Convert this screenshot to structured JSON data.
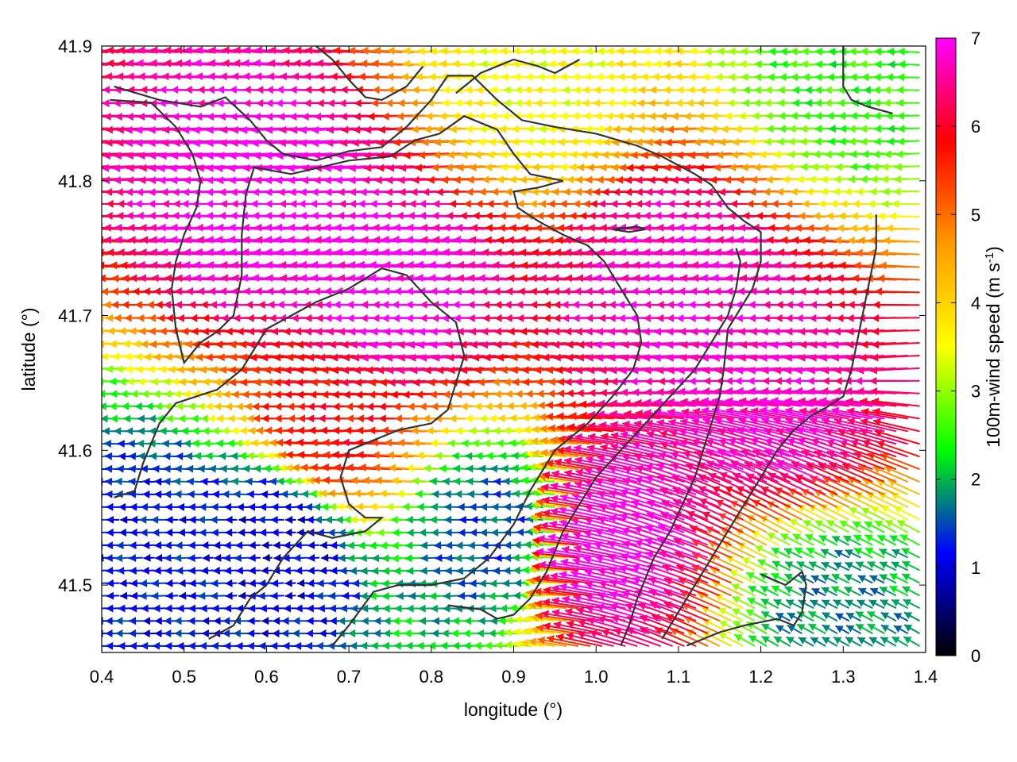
{
  "chart_data": {
    "type": "vector-field",
    "xlabel": "longitude (°)",
    "ylabel": "latitude (°)",
    "xlim": [
      0.4,
      1.4
    ],
    "ylim": [
      41.45,
      41.9
    ],
    "x_ticks": [
      0.4,
      0.5,
      0.6,
      0.7,
      0.8,
      0.9,
      1.0,
      1.1,
      1.2,
      1.3,
      1.4
    ],
    "x_tick_labels": [
      "0.4",
      "0.5",
      "0.6",
      "0.7",
      "0.8",
      "0.9",
      "1.0",
      "1.1",
      "1.2",
      "1.3",
      "1.4"
    ],
    "y_ticks": [
      41.5,
      41.6,
      41.7,
      41.8,
      41.9
    ],
    "y_tick_labels": [
      "41.5",
      "41.6",
      "41.7",
      "41.8",
      "41.9"
    ],
    "colorbar": {
      "label": "100m-wind speed (m s",
      "label_sup": "-1",
      "label_end": ")",
      "range": [
        0,
        7
      ],
      "ticks": [
        0,
        1,
        2,
        3,
        4,
        5,
        6,
        7
      ],
      "tick_labels": [
        "0",
        "1",
        "2",
        "3",
        "4",
        "5",
        "6",
        "7"
      ],
      "palette": [
        "#000000",
        "#0000ff",
        "#00ff00",
        "#ffff00",
        "#ff9900",
        "#ff0000",
        "#ff00ff"
      ]
    },
    "wind_regime_centers": [
      {
        "lon": 0.65,
        "lat": 41.78,
        "speed": 7.0
      },
      {
        "lon": 0.8,
        "lat": 41.72,
        "speed": 7.0
      },
      {
        "lon": 1.15,
        "lat": 41.72,
        "speed": 6.8
      },
      {
        "lon": 1.05,
        "lat": 41.53,
        "speed": 7.0
      },
      {
        "lon": 1.25,
        "lat": 41.62,
        "speed": 6.8
      },
      {
        "lon": 0.47,
        "lat": 41.52,
        "speed": 1.2
      },
      {
        "lon": 0.63,
        "lat": 41.53,
        "speed": 1.0
      },
      {
        "lon": 0.88,
        "lat": 41.54,
        "speed": 1.5
      },
      {
        "lon": 1.3,
        "lat": 41.48,
        "speed": 1.8
      },
      {
        "lon": 1.33,
        "lat": 41.88,
        "speed": 2.5
      },
      {
        "lon": 0.72,
        "lat": 41.62,
        "speed": 5.8
      },
      {
        "lon": 0.95,
        "lat": 41.88,
        "speed": 3.5
      }
    ],
    "boundaries": [
      [
        [
          0.415,
          41.87
        ],
        [
          0.47,
          41.86
        ],
        [
          0.52,
          41.855
        ],
        [
          0.55,
          41.862
        ],
        [
          0.58,
          41.845
        ],
        [
          0.6,
          41.83
        ],
        [
          0.62,
          41.82
        ],
        [
          0.66,
          41.815
        ],
        [
          0.7,
          41.822
        ],
        [
          0.74,
          41.825
        ],
        [
          0.77,
          41.84
        ],
        [
          0.8,
          41.86
        ],
        [
          0.82,
          41.878
        ],
        [
          0.85,
          41.878
        ],
        [
          0.88,
          41.86
        ],
        [
          0.91,
          41.845
        ],
        [
          0.95,
          41.84
        ],
        [
          1.0,
          41.835
        ],
        [
          1.05,
          41.826
        ],
        [
          1.08,
          41.818
        ],
        [
          1.12,
          41.805
        ],
        [
          1.14,
          41.797
        ],
        [
          1.16,
          41.78
        ],
        [
          1.18,
          41.77
        ],
        [
          1.2,
          41.762
        ],
        [
          1.2,
          41.74
        ],
        [
          1.19,
          41.72
        ],
        [
          1.17,
          41.7
        ],
        [
          1.16,
          41.69
        ],
        [
          1.155,
          41.66
        ],
        [
          1.15,
          41.64
        ],
        [
          1.14,
          41.62
        ],
        [
          1.13,
          41.6
        ],
        [
          1.12,
          41.58
        ],
        [
          1.105,
          41.56
        ],
        [
          1.09,
          41.54
        ],
        [
          1.07,
          41.52
        ],
        [
          1.05,
          41.49
        ],
        [
          1.04,
          41.47
        ],
        [
          1.03,
          41.455
        ]
      ],
      [
        [
          0.41,
          41.86
        ],
        [
          0.46,
          41.858
        ],
        [
          0.49,
          41.84
        ],
        [
          0.51,
          41.82
        ],
        [
          0.52,
          41.8
        ],
        [
          0.515,
          41.78
        ],
        [
          0.5,
          41.76
        ],
        [
          0.49,
          41.74
        ],
        [
          0.485,
          41.72
        ],
        [
          0.49,
          41.69
        ],
        [
          0.5,
          41.665
        ],
        [
          0.52,
          41.68
        ],
        [
          0.54,
          41.688
        ],
        [
          0.56,
          41.7
        ],
        [
          0.57,
          41.73
        ],
        [
          0.57,
          41.76
        ],
        [
          0.575,
          41.79
        ],
        [
          0.585,
          41.81
        ],
        [
          0.63,
          41.805
        ],
        [
          0.7,
          41.815
        ],
        [
          0.75,
          41.818
        ],
        [
          0.78,
          41.83
        ],
        [
          0.81,
          41.835
        ],
        [
          0.84,
          41.848
        ],
        [
          0.88,
          41.838
        ],
        [
          0.9,
          41.82
        ],
        [
          0.92,
          41.805
        ],
        [
          0.96,
          41.8
        ],
        [
          0.93,
          41.795
        ],
        [
          0.9,
          41.792
        ],
        [
          0.905,
          41.78
        ],
        [
          0.93,
          41.77
        ],
        [
          0.96,
          41.76
        ],
        [
          0.99,
          41.752
        ],
        [
          1.01,
          41.74
        ],
        [
          1.03,
          41.72
        ],
        [
          1.05,
          41.7
        ],
        [
          1.055,
          41.68
        ],
        [
          1.045,
          41.66
        ],
        [
          1.02,
          41.64
        ],
        [
          0.99,
          41.62
        ],
        [
          0.95,
          41.6
        ],
        [
          0.92,
          41.57
        ],
        [
          0.9,
          41.545
        ],
        [
          0.87,
          41.52
        ],
        [
          0.84,
          41.505
        ],
        [
          0.8,
          41.5
        ],
        [
          0.76,
          41.5
        ],
        [
          0.73,
          41.495
        ],
        [
          0.7,
          41.47
        ],
        [
          0.68,
          41.455
        ]
      ],
      [
        [
          0.415,
          41.565
        ],
        [
          0.44,
          41.57
        ],
        [
          0.45,
          41.59
        ],
        [
          0.47,
          41.62
        ],
        [
          0.49,
          41.635
        ],
        [
          0.54,
          41.645
        ],
        [
          0.57,
          41.66
        ],
        [
          0.6,
          41.69
        ],
        [
          0.63,
          41.7
        ],
        [
          0.66,
          41.71
        ],
        [
          0.7,
          41.72
        ],
        [
          0.74,
          41.735
        ],
        [
          0.77,
          41.73
        ],
        [
          0.8,
          41.71
        ],
        [
          0.83,
          41.695
        ],
        [
          0.84,
          41.67
        ],
        [
          0.83,
          41.65
        ],
        [
          0.82,
          41.63
        ],
        [
          0.8,
          41.62
        ],
        [
          0.76,
          41.615
        ],
        [
          0.72,
          41.605
        ],
        [
          0.7,
          41.6
        ],
        [
          0.69,
          41.58
        ],
        [
          0.7,
          41.56
        ],
        [
          0.72,
          41.55
        ],
        [
          0.74,
          41.55
        ],
        [
          0.72,
          41.54
        ],
        [
          0.68,
          41.535
        ],
        [
          0.65,
          41.54
        ],
        [
          0.62,
          41.52
        ],
        [
          0.6,
          41.5
        ],
        [
          0.58,
          41.49
        ],
        [
          0.56,
          41.47
        ],
        [
          0.53,
          41.46
        ]
      ],
      [
        [
          0.82,
          41.485
        ],
        [
          0.86,
          41.482
        ],
        [
          0.88,
          41.475
        ],
        [
          0.9,
          41.478
        ],
        [
          0.92,
          41.49
        ],
        [
          0.94,
          41.51
        ],
        [
          0.96,
          41.54
        ],
        [
          0.98,
          41.56
        ],
        [
          1.0,
          41.58
        ],
        [
          1.03,
          41.6
        ],
        [
          1.06,
          41.62
        ],
        [
          1.09,
          41.64
        ],
        [
          1.12,
          41.66
        ],
        [
          1.14,
          41.68
        ],
        [
          1.16,
          41.7
        ],
        [
          1.17,
          41.72
        ],
        [
          1.175,
          41.74
        ],
        [
          1.17,
          41.75
        ]
      ],
      [
        [
          1.34,
          41.775
        ],
        [
          1.34,
          41.75
        ],
        [
          1.33,
          41.72
        ],
        [
          1.32,
          41.69
        ],
        [
          1.31,
          41.66
        ],
        [
          1.3,
          41.64
        ],
        [
          1.28,
          41.632
        ],
        [
          1.26,
          41.625
        ],
        [
          1.24,
          41.615
        ],
        [
          1.22,
          41.6
        ],
        [
          1.2,
          41.58
        ],
        [
          1.18,
          41.56
        ],
        [
          1.16,
          41.54
        ],
        [
          1.14,
          41.52
        ],
        [
          1.12,
          41.5
        ],
        [
          1.1,
          41.48
        ],
        [
          1.08,
          41.46
        ]
      ],
      [
        [
          1.2,
          41.508
        ],
        [
          1.23,
          41.5
        ],
        [
          1.25,
          41.51
        ],
        [
          1.255,
          41.5
        ],
        [
          1.25,
          41.48
        ],
        [
          1.24,
          41.47
        ],
        [
          1.22,
          41.475
        ],
        [
          1.18,
          41.47
        ],
        [
          1.15,
          41.465
        ],
        [
          1.11,
          41.455
        ]
      ],
      [
        [
          1.3,
          41.9
        ],
        [
          1.3,
          41.87
        ],
        [
          1.31,
          41.86
        ],
        [
          1.33,
          41.855
        ],
        [
          1.36,
          41.85
        ]
      ],
      [
        [
          0.83,
          41.865
        ],
        [
          0.86,
          41.88
        ],
        [
          0.9,
          41.89
        ],
        [
          0.93,
          41.885
        ],
        [
          0.95,
          41.88
        ],
        [
          0.98,
          41.89
        ]
      ],
      [
        [
          0.79,
          41.885
        ],
        [
          0.77,
          41.87
        ],
        [
          0.74,
          41.86
        ],
        [
          0.72,
          41.862
        ],
        [
          0.7,
          41.875
        ],
        [
          0.68,
          41.89
        ],
        [
          0.66,
          41.9
        ]
      ],
      [
        [
          1.02,
          41.764
        ],
        [
          1.04,
          41.762
        ],
        [
          1.06,
          41.764
        ],
        [
          1.05,
          41.766
        ],
        [
          1.02,
          41.764
        ]
      ]
    ]
  }
}
